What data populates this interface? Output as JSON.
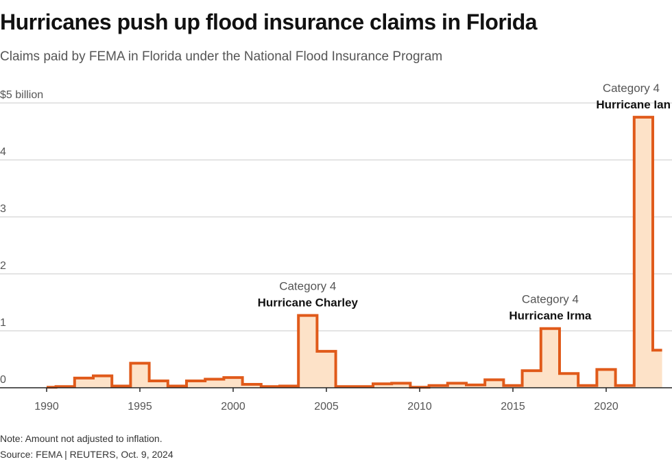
{
  "header": {
    "title": "Hurricanes push up flood insurance claims in Florida",
    "subtitle": "Claims paid by FEMA in Florida under the National Flood Insurance Program"
  },
  "footer": {
    "note": "Note: Amount not adjusted to inflation.",
    "source": "Source: FEMA | REUTERS, Oct. 9, 2024"
  },
  "colors": {
    "line": "#e05a1a",
    "fill": "#fde2c8",
    "grid": "#c8c8c8",
    "axis": "#222222"
  },
  "chart_data": {
    "type": "area",
    "title": "Hurricanes push up flood insurance claims in Florida",
    "subtitle": "Claims paid by FEMA in Florida under the National Flood Insurance Program",
    "xlabel": "",
    "ylabel": "$ billion",
    "ylim": [
      0,
      5
    ],
    "yticks": [
      0,
      1,
      2,
      3,
      4,
      5
    ],
    "ytick_labels": [
      "0",
      "1",
      "2",
      "3",
      "4",
      "$5 billion"
    ],
    "xticks": [
      1990,
      1995,
      2000,
      2005,
      2010,
      2015,
      2020
    ],
    "xtick_labels": [
      "1990",
      "1995",
      "2000",
      "2005",
      "2010",
      "2015",
      "2020"
    ],
    "grid": true,
    "step": true,
    "x": [
      1990,
      1991,
      1992,
      1993,
      1994,
      1995,
      1996,
      1997,
      1998,
      1999,
      2000,
      2001,
      2002,
      2003,
      2004,
      2005,
      2006,
      2007,
      2008,
      2009,
      2010,
      2011,
      2012,
      2013,
      2014,
      2015,
      2016,
      2017,
      2018,
      2019,
      2020,
      2021,
      2022,
      2023
    ],
    "series": [
      {
        "name": "Claims paid",
        "values": [
          0.01,
          0.02,
          0.17,
          0.21,
          0.03,
          0.43,
          0.12,
          0.03,
          0.12,
          0.15,
          0.18,
          0.06,
          0.02,
          0.03,
          1.27,
          0.64,
          0.02,
          0.02,
          0.07,
          0.08,
          0.01,
          0.04,
          0.08,
          0.05,
          0.14,
          0.04,
          0.3,
          1.04,
          0.25,
          0.04,
          0.32,
          0.04,
          4.75,
          0.66
        ]
      }
    ],
    "annotations": [
      {
        "year": 2004,
        "category": "Category 4",
        "name": "Hurricane Charley"
      },
      {
        "year": 2017,
        "category": "Category 4",
        "name": "Hurricane Irma"
      },
      {
        "year": 2022,
        "category": "Category 4",
        "name": "Hurricane Ian"
      }
    ]
  }
}
